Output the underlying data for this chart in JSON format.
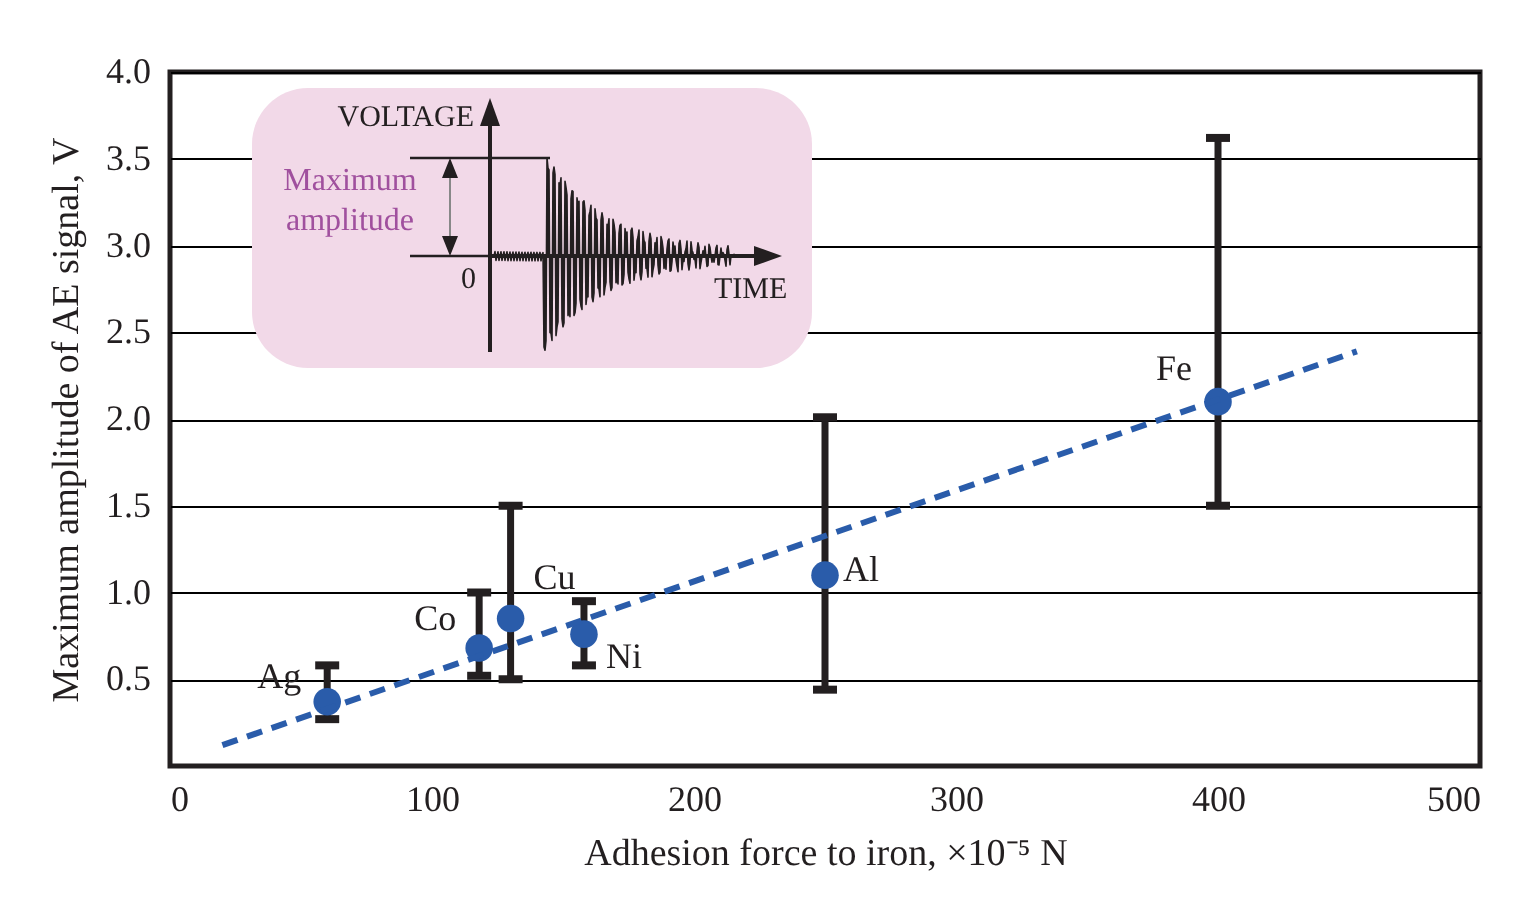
{
  "chart_data": {
    "type": "scatter",
    "xlabel": "Adhesion force to iron, ×10⁻⁵ N",
    "ylabel": "Maximum amplitude of AE signal, V",
    "xlim": [
      0,
      500
    ],
    "xticks": [
      0,
      100,
      200,
      300,
      400,
      500
    ],
    "ylim": [
      0,
      4
    ],
    "yticks": [
      0.5,
      {
        "value": 1,
        "label": "1.0"
      },
      1.5,
      {
        "value": 2,
        "label": "2.0"
      },
      2.5,
      {
        "value": 3,
        "label": "3.0"
      },
      3.5,
      {
        "value": 4,
        "label": "4.0"
      }
    ],
    "grid": "y",
    "series": [
      {
        "color": "#2a5caa",
        "marker": "circle",
        "x": [
          60,
          118,
          130,
          158,
          250,
          400
        ],
        "values": [
          0.37,
          0.68,
          0.85,
          0.76,
          1.1,
          2.1
        ],
        "errors": [
          [
            0.27,
            0.58
          ],
          [
            0.52,
            1.0
          ],
          [
            0.5,
            1.5
          ],
          [
            0.58,
            0.95
          ],
          [
            0.44,
            2.01
          ],
          [
            1.5,
            3.62
          ]
        ]
      },
      {
        "type": "line",
        "color": "#2a5caa",
        "marker": "none",
        "line_style": "dashed",
        "x": [
          20,
          453
        ],
        "values": [
          0.12,
          2.39
        ]
      }
    ],
    "annotations": [
      {
        "text": "Ag",
        "x": 60,
        "y": 0.37
      },
      {
        "text": "Co",
        "x": 118,
        "y": 0.68
      },
      {
        "text": "Cu",
        "x": 130,
        "y": 0.85
      },
      {
        "text": "Ni",
        "x": 158,
        "y": 0.76
      },
      {
        "text": "Al",
        "x": 250,
        "y": 1.1
      },
      {
        "text": "Fe",
        "x": 400,
        "y": 2.1
      },
      "VOLTAGE",
      "Maximum amplitude",
      "0",
      "TIME"
    ]
  }
}
